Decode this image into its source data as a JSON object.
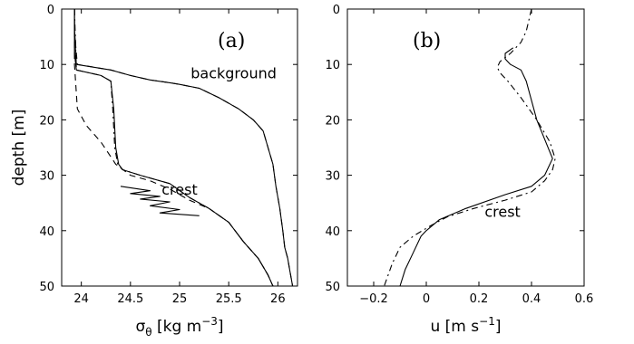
{
  "chart_data": [
    {
      "type": "line",
      "panel_label": "(a)",
      "xlabel": "σθ [kg m−3]",
      "ylabel": "depth [m]",
      "xlim": [
        23.8,
        26.2
      ],
      "ylim": [
        0,
        50
      ],
      "y_inverted": true,
      "xticks": [
        "24",
        "24.5",
        "25",
        "25.5",
        "26"
      ],
      "xtick_values": [
        24,
        24.5,
        25,
        25.5,
        26
      ],
      "yticks": [
        "0",
        "10",
        "20",
        "30",
        "40",
        "50"
      ],
      "ytick_values": [
        0,
        10,
        20,
        30,
        40,
        50
      ],
      "annotations": [
        {
          "text": "background",
          "x": 25.55,
          "y": 12.5
        },
        {
          "text": "crest",
          "x": 25.0,
          "y": 33.5
        }
      ],
      "series": [
        {
          "style": "solid",
          "x": [
            23.93,
            23.93,
            23.94,
            23.94,
            23.95,
            24.3,
            24.5,
            24.7,
            24.9,
            25.0,
            25.2,
            25.4,
            25.6,
            25.75,
            25.85,
            25.9,
            25.95,
            25.98,
            26.02,
            26.05,
            26.07,
            26.1,
            26.12,
            26.15
          ],
          "y": [
            0,
            4,
            6,
            8,
            10,
            11,
            12,
            12.8,
            13.3,
            13.6,
            14.3,
            16,
            18,
            20,
            22,
            25,
            28,
            32,
            36,
            40,
            43,
            45,
            47,
            50
          ]
        },
        {
          "style": "dashed",
          "x": [
            23.93,
            23.93,
            23.95,
            23.96,
            24.3,
            24.5,
            24.7,
            24.9,
            25.0,
            25.2,
            25.4,
            25.6,
            25.75,
            25.85,
            25.9,
            25.95,
            25.98,
            26.02,
            26.05,
            26.07,
            26.1,
            26.12,
            26.15
          ],
          "y": [
            0,
            4,
            8,
            10,
            11,
            12,
            12.8,
            13.3,
            13.6,
            14.3,
            16,
            18,
            20,
            22,
            25,
            28,
            32,
            36,
            40,
            43,
            45,
            47,
            50
          ]
        },
        {
          "style": "solid",
          "x": [
            23.93,
            23.93,
            23.95,
            24.2,
            24.3,
            24.33,
            24.35,
            24.38,
            24.42,
            24.6,
            24.9,
            25.1,
            25.3,
            25.5,
            25.65,
            25.8,
            25.9,
            25.95
          ],
          "y": [
            0,
            8,
            11,
            12,
            13,
            18,
            25,
            28,
            29,
            30,
            31.5,
            34,
            36,
            38.5,
            42,
            45,
            48,
            50
          ]
        },
        {
          "style": "dashdot",
          "x": [
            23.93,
            23.95,
            24.2,
            24.3,
            24.32,
            24.34,
            24.37,
            24.42,
            24.6,
            24.9,
            25.1,
            25.3,
            25.5,
            25.65,
            25.8,
            25.9,
            25.95
          ],
          "y": [
            0,
            11,
            12,
            13,
            18,
            25,
            28,
            29,
            30,
            31.5,
            34,
            36,
            38.5,
            42,
            45,
            48,
            50
          ]
        },
        {
          "style": "dashed",
          "x": [
            23.93,
            23.93,
            23.96,
            24.05,
            24.2,
            24.35,
            24.5,
            24.7,
            24.9,
            25.1,
            25.3,
            25.5,
            25.65,
            25.8,
            25.9,
            25.95
          ],
          "y": [
            0,
            10,
            18,
            21,
            24,
            28,
            30,
            31,
            32.5,
            34.5,
            36,
            38.5,
            42,
            45,
            48,
            50
          ]
        },
        {
          "style": "solid",
          "x": [
            24.4,
            24.7,
            24.5,
            24.8,
            24.6,
            24.9,
            24.7,
            25.0,
            24.8,
            25.2
          ],
          "y": [
            32,
            32.8,
            33.3,
            33.8,
            34.3,
            34.8,
            35.5,
            36.2,
            36.8,
            37.3
          ]
        }
      ]
    },
    {
      "type": "line",
      "panel_label": "(b)",
      "xlabel": "u  [m s−1]",
      "ylabel": "",
      "xlim": [
        -0.3,
        0.6
      ],
      "ylim": [
        0,
        50
      ],
      "y_inverted": true,
      "xticks": [
        "−0.2",
        "0",
        "0.2",
        "0.4",
        "0.6"
      ],
      "xtick_values": [
        -0.2,
        0,
        0.2,
        0.4,
        0.6
      ],
      "yticks": [
        "0",
        "10",
        "20",
        "30",
        "40",
        "50"
      ],
      "ytick_values": [
        0,
        10,
        20,
        30,
        40,
        50
      ],
      "annotations": [
        {
          "text": "crest",
          "x": 0.29,
          "y": 37.5
        }
      ],
      "series": [
        {
          "style": "solid",
          "x": [
            0.33,
            0.3,
            0.3,
            0.32,
            0.36,
            0.38,
            0.42,
            0.48,
            0.45,
            0.4,
            0.3,
            0.15,
            0.05,
            0.0,
            -0.02,
            -0.05,
            -0.08,
            -0.1
          ],
          "y": [
            7,
            8,
            9,
            10,
            11,
            13,
            20,
            27,
            30,
            32,
            33.5,
            36,
            38,
            40,
            41,
            44,
            47,
            50
          ]
        },
        {
          "style": "dashdot",
          "x": [
            0.4,
            0.39,
            0.38,
            0.36,
            0.32,
            0.28,
            0.27,
            0.28,
            0.31,
            0.36,
            0.42,
            0.47,
            0.49,
            0.48,
            0.45,
            0.4,
            0.3,
            0.18,
            0.08,
            0.02,
            -0.05,
            -0.1,
            -0.13,
            -0.16
          ],
          "y": [
            0,
            2,
            4,
            6,
            8,
            9.5,
            10.5,
            11.5,
            13,
            16,
            20,
            24,
            27,
            29,
            31,
            33,
            34.5,
            36,
            37.5,
            39,
            41,
            43,
            46,
            50
          ]
        }
      ]
    }
  ]
}
